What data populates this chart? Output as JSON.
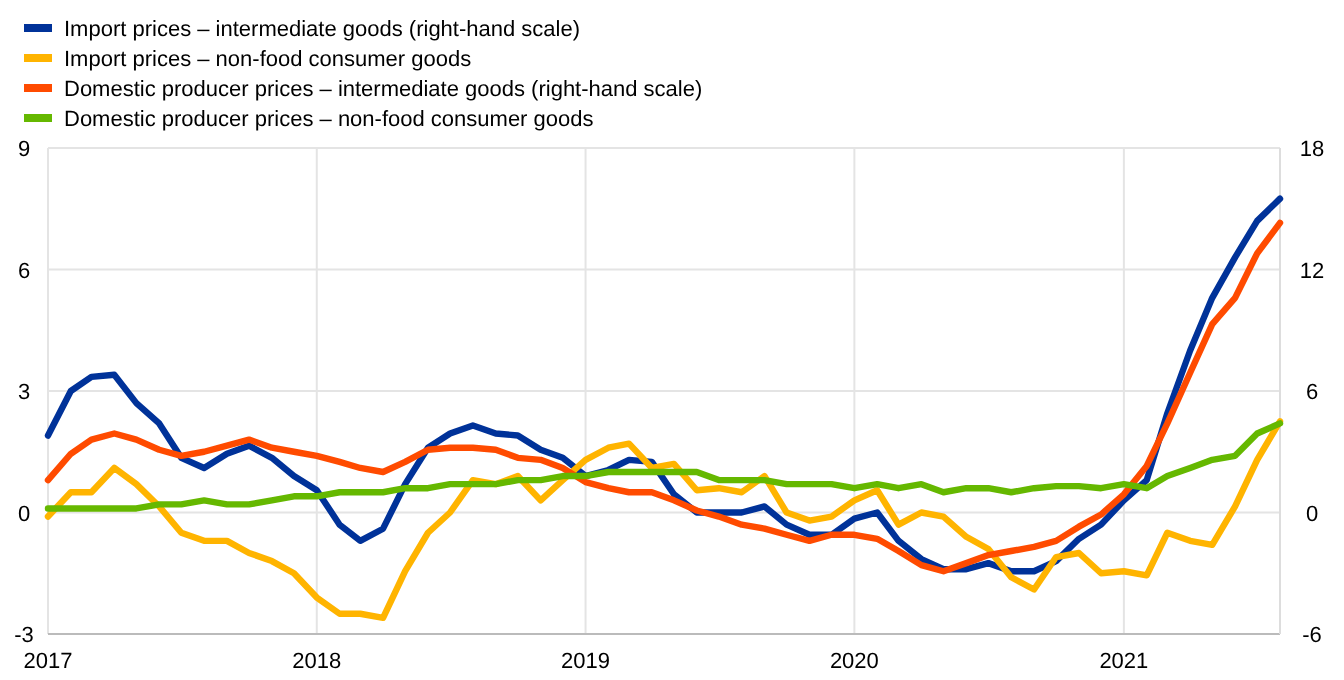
{
  "chart_data": {
    "type": "line",
    "xlim": [
      "2017-01",
      "2021-08"
    ],
    "xticks": [
      "2017",
      "2018",
      "2019",
      "2020",
      "2021"
    ],
    "ylim": [
      -3,
      9
    ],
    "yticks": [
      -3,
      0,
      3,
      6,
      9
    ],
    "y2lim": [
      -6,
      18
    ],
    "y2ticks": [
      -6,
      0,
      6,
      12,
      18
    ],
    "grid": true,
    "legend": "top left",
    "marker": "none",
    "line_style": "solid",
    "x": [
      "2017-01",
      "2017-02",
      "2017-03",
      "2017-04",
      "2017-05",
      "2017-06",
      "2017-07",
      "2017-08",
      "2017-09",
      "2017-10",
      "2017-11",
      "2017-12",
      "2018-01",
      "2018-02",
      "2018-03",
      "2018-04",
      "2018-05",
      "2018-06",
      "2018-07",
      "2018-08",
      "2018-09",
      "2018-10",
      "2018-11",
      "2018-12",
      "2019-01",
      "2019-02",
      "2019-03",
      "2019-04",
      "2019-05",
      "2019-06",
      "2019-07",
      "2019-08",
      "2019-09",
      "2019-10",
      "2019-11",
      "2019-12",
      "2020-01",
      "2020-02",
      "2020-03",
      "2020-04",
      "2020-05",
      "2020-06",
      "2020-07",
      "2020-08",
      "2020-09",
      "2020-10",
      "2020-11",
      "2020-12",
      "2021-01",
      "2021-02",
      "2021-03",
      "2021-04",
      "2021-05",
      "2021-06",
      "2021-07",
      "2021-08"
    ],
    "series": [
      {
        "name": "Import prices – intermediate goods (right-hand scale)",
        "color": "#003299",
        "axis": "y2",
        "values": [
          3.8,
          6.0,
          6.7,
          6.8,
          5.4,
          4.4,
          2.7,
          2.2,
          2.9,
          3.3,
          2.7,
          1.8,
          1.1,
          -0.6,
          -1.4,
          -0.8,
          1.4,
          3.2,
          3.9,
          4.3,
          3.9,
          3.8,
          3.1,
          2.7,
          1.8,
          2.1,
          2.6,
          2.5,
          0.9,
          0,
          0,
          0,
          0.3,
          -0.6,
          -1.1,
          -1.1,
          -0.3,
          0,
          -1.4,
          -2.3,
          -2.8,
          -2.8,
          -2.5,
          -2.9,
          -2.9,
          -2.4,
          -1.3,
          -0.6,
          0.6,
          1.6,
          4.9,
          8.0,
          10.6,
          12.6,
          14.4,
          15.5
        ]
      },
      {
        "name": "Import prices – non-food consumer goods",
        "color": "#ffb400",
        "values": [
          -0.1,
          0.5,
          0.5,
          1.1,
          0.7,
          0.15,
          -0.5,
          -0.7,
          -0.7,
          -1.0,
          -1.2,
          -1.5,
          -2.1,
          -2.5,
          -2.5,
          -2.6,
          -1.45,
          -0.5,
          0,
          0.8,
          0.7,
          0.9,
          0.3,
          0.8,
          1.3,
          1.6,
          1.7,
          1.1,
          1.2,
          0.55,
          0.6,
          0.5,
          0.9,
          0,
          -0.2,
          -0.1,
          0.3,
          0.55,
          -0.3,
          0,
          -0.1,
          -0.6,
          -0.9,
          -1.6,
          -1.9,
          -1.1,
          -1.0,
          -1.5,
          -1.45,
          -1.55,
          -0.5,
          -0.7,
          -0.8,
          0.15,
          1.3,
          2.25
        ]
      },
      {
        "name": "Domestic producer prices – intermediate goods (right-hand scale)",
        "color": "#ff4b00",
        "axis": "y2",
        "values": [
          1.6,
          2.9,
          3.6,
          3.9,
          3.6,
          3.1,
          2.8,
          3.0,
          3.3,
          3.6,
          3.2,
          3.0,
          2.8,
          2.5,
          2.2,
          2.0,
          2.5,
          3.1,
          3.2,
          3.2,
          3.1,
          2.7,
          2.6,
          2.2,
          1.5,
          1.2,
          1.0,
          1.0,
          0.6,
          0.1,
          -0.2,
          -0.6,
          -0.8,
          -1.1,
          -1.4,
          -1.1,
          -1.1,
          -1.3,
          -1.9,
          -2.6,
          -2.9,
          -2.5,
          -2.1,
          -1.9,
          -1.7,
          -1.4,
          -0.7,
          -0.1,
          0.9,
          2.3,
          4.4,
          6.9,
          9.3,
          10.6,
          12.8,
          14.3
        ]
      },
      {
        "name": "Domestic producer prices – non-food consumer goods",
        "color": "#65b800",
        "values": [
          0.1,
          0.1,
          0.1,
          0.1,
          0.1,
          0.2,
          0.2,
          0.3,
          0.2,
          0.2,
          0.3,
          0.4,
          0.4,
          0.5,
          0.5,
          0.5,
          0.6,
          0.6,
          0.7,
          0.7,
          0.7,
          0.8,
          0.8,
          0.9,
          0.9,
          1.0,
          1.0,
          1.0,
          1.0,
          1.0,
          0.8,
          0.8,
          0.8,
          0.7,
          0.7,
          0.7,
          0.6,
          0.7,
          0.6,
          0.7,
          0.5,
          0.6,
          0.6,
          0.5,
          0.6,
          0.65,
          0.65,
          0.6,
          0.7,
          0.6,
          0.9,
          1.1,
          1.3,
          1.4,
          1.95,
          2.2
        ]
      }
    ]
  }
}
